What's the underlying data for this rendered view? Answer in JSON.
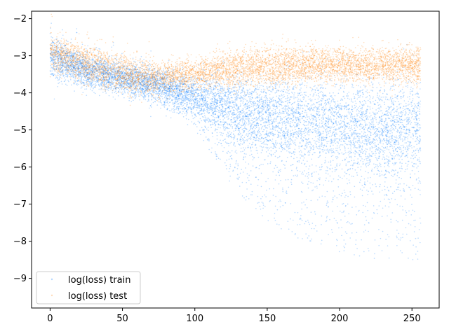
{
  "chart_data": {
    "type": "scatter",
    "title": "",
    "xlabel": "",
    "ylabel": "",
    "xlim": [
      -12.8,
      268.8
    ],
    "ylim": [
      -9.8,
      -1.8
    ],
    "xticks": [
      0,
      50,
      100,
      150,
      200,
      250
    ],
    "xtick_labels": [
      "0",
      "50",
      "100",
      "150",
      "200",
      "250"
    ],
    "yticks": [
      -2,
      -3,
      -4,
      -5,
      -6,
      -7,
      -8,
      -9
    ],
    "ytick_labels": [
      "−2",
      "−3",
      "−4",
      "−5",
      "−6",
      "−7",
      "−8",
      "−9"
    ],
    "grid": false,
    "legend": {
      "location": "lower-left"
    },
    "x_range": [
      0,
      256
    ],
    "series": [
      {
        "name": "log(loss) train",
        "color": "#0a7cff",
        "trend": [
          {
            "x": 0,
            "y_median": -3.0,
            "y_low": -3.6,
            "y_high": -2.5
          },
          {
            "x": 25,
            "y_median": -3.4,
            "y_low": -3.9,
            "y_high": -3.0
          },
          {
            "x": 50,
            "y_median": -3.6,
            "y_low": -4.0,
            "y_high": -3.2
          },
          {
            "x": 75,
            "y_median": -3.8,
            "y_low": -4.3,
            "y_high": -3.4
          },
          {
            "x": 100,
            "y_median": -4.1,
            "y_low": -5.0,
            "y_high": -3.6
          },
          {
            "x": 125,
            "y_median": -4.5,
            "y_low": -6.5,
            "y_high": -3.8
          },
          {
            "x": 150,
            "y_median": -4.7,
            "y_low": -7.5,
            "y_high": -3.9
          },
          {
            "x": 175,
            "y_median": -4.8,
            "y_low": -8.0,
            "y_high": -3.9
          },
          {
            "x": 200,
            "y_median": -4.9,
            "y_low": -8.3,
            "y_high": -4.0
          },
          {
            "x": 225,
            "y_median": -5.0,
            "y_low": -8.5,
            "y_high": -4.0
          },
          {
            "x": 256,
            "y_median": -5.0,
            "y_low": -8.5,
            "y_high": -4.1
          }
        ]
      },
      {
        "name": "log(loss) test",
        "color": "#ff8c1a",
        "trend": [
          {
            "x": 0,
            "y_median": -2.9,
            "y_low": -3.4,
            "y_high": -2.5
          },
          {
            "x": 25,
            "y_median": -3.2,
            "y_low": -3.6,
            "y_high": -2.7
          },
          {
            "x": 50,
            "y_median": -3.5,
            "y_low": -3.9,
            "y_high": -3.0
          },
          {
            "x": 75,
            "y_median": -3.6,
            "y_low": -4.0,
            "y_high": -3.2
          },
          {
            "x": 100,
            "y_median": -3.5,
            "y_low": -3.9,
            "y_high": -3.1
          },
          {
            "x": 125,
            "y_median": -3.35,
            "y_low": -3.8,
            "y_high": -2.9
          },
          {
            "x": 150,
            "y_median": -3.3,
            "y_low": -3.7,
            "y_high": -2.8
          },
          {
            "x": 175,
            "y_median": -3.25,
            "y_low": -3.7,
            "y_high": -2.8
          },
          {
            "x": 200,
            "y_median": -3.25,
            "y_low": -3.7,
            "y_high": -2.8
          },
          {
            "x": 225,
            "y_median": -3.25,
            "y_low": -3.7,
            "y_high": -2.8
          },
          {
            "x": 256,
            "y_median": -3.25,
            "y_low": -3.7,
            "y_high": -2.8
          }
        ]
      }
    ]
  }
}
